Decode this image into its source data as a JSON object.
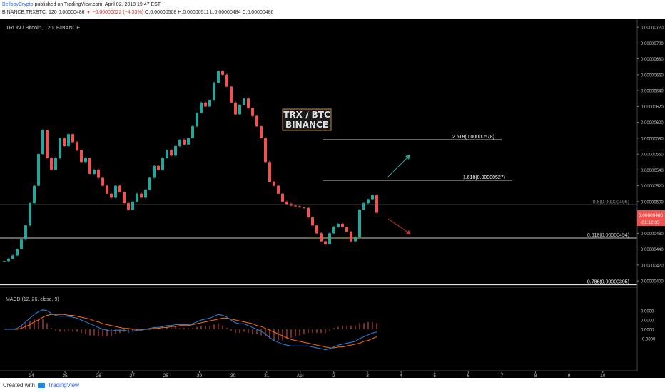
{
  "header": {
    "author": "BellboyCrypto",
    "published_text": "published on TradingView.com, April 02, 2018 19:47 EST",
    "symbol_line": "BINANCE:TRXBTC, 120 0.00000486",
    "change_text": "▼ −0.00000022 (−4.33%)",
    "ohlc_text": "O:0.00000508 H:0.00000511 L:0.00000484 C:0.00000486"
  },
  "footer": {
    "created_with": "Created with",
    "brand": "TradingView"
  },
  "colors": {
    "bg": "#000000",
    "up": "#26a69a",
    "down": "#ef5350",
    "fib": "#ffffff",
    "macd": "#1e88e5",
    "signal": "#ff6d00",
    "hist": "#ef5350",
    "arrow_up": "#26a69a",
    "arrow_down": "#d32f2f",
    "label_box": "#c58b47",
    "price_tag": "#ef5350"
  },
  "chart_data": {
    "type": "candlestick",
    "title": "TRON / Bitcoin, 120, BINANCE",
    "watermark": [
      "TRX / BTC",
      "BINANCE"
    ],
    "y_ticks": [
      "0.00000720",
      "0.00000700",
      "0.00000680",
      "0.00000660",
      "0.00000640",
      "0.00000620",
      "0.00000600",
      "0.00000580",
      "0.00000560",
      "0.00000540",
      "0.00000520",
      "0.00000500",
      "0.00000480",
      "0.00000460",
      "0.00000440",
      "0.00000420",
      "0.00000400"
    ],
    "ylim": [
      3.92e-06,
      7.3e-06
    ],
    "x_ticks": [
      "24",
      "25",
      "26",
      "27",
      "28",
      "29",
      "30",
      "31",
      "Apr",
      "2",
      "3",
      "4",
      "5",
      "6",
      "7",
      "8",
      "9",
      "10"
    ],
    "last_price": "0.00000486",
    "countdown": "01:12:35",
    "fib_levels": [
      {
        "label": "2.618(0.00000578)",
        "value": 5.78e-06
      },
      {
        "label": "1.618(0.00000527)",
        "value": 5.27e-06
      },
      {
        "label": "0.5(0.00000496)",
        "value": 4.96e-06
      },
      {
        "label": "0.618(0.00000454)",
        "value": 4.54e-06
      },
      {
        "label": "0.786(0.00000395)",
        "value": 3.95e-06
      }
    ],
    "candles_close": [
      4.25e-06,
      4.28e-06,
      4.32e-06,
      4.4e-06,
      4.52e-06,
      4.7e-06,
      4.98e-06,
      5.2e-06,
      5.6e-06,
      5.9e-06,
      5.55e-06,
      5.4e-06,
      5.55e-06,
      5.8e-06,
      5.7e-06,
      5.85e-06,
      5.75e-06,
      5.65e-06,
      5.5e-06,
      5.55e-06,
      5.35e-06,
      5.4e-06,
      5.3e-06,
      5.2e-06,
      5.1e-06,
      5.05e-06,
      5.2e-06,
      5.12e-06,
      4.98e-06,
      4.9e-06,
      5e-06,
      5.1e-06,
      5.05e-06,
      5.15e-06,
      5.3e-06,
      5.45e-06,
      5.4e-06,
      5.55e-06,
      5.65e-06,
      5.58e-06,
      5.7e-06,
      5.78e-06,
      5.72e-06,
      5.8e-06,
      5.95e-06,
      6.12e-06,
      6.25e-06,
      6.2e-06,
      6.28e-06,
      6.5e-06,
      6.65e-06,
      6.6e-06,
      6.45e-06,
      6.25e-06,
      6.1e-06,
      6.22e-06,
      6.3e-06,
      6.18e-06,
      6.08e-06,
      5.95e-06,
      5.8e-06,
      5.5e-06,
      5.25e-06,
      5.2e-06,
      5.1e-06,
      5e-06,
      4.97e-06,
      4.95e-06,
      4.94e-06,
      4.93e-06,
      4.92e-06,
      4.8e-06,
      4.7e-06,
      4.6e-06,
      4.5e-06,
      4.46e-06,
      4.6e-06,
      4.68e-06,
      4.72e-06,
      4.68e-06,
      4.62e-06,
      4.5e-06,
      4.55e-06,
      4.9e-06,
      4.98e-06,
      5.03e-06,
      5.08e-06,
      4.86e-06
    ],
    "macd_line": [
      0.0,
      0.0,
      0.0,
      0.1,
      0.4,
      0.8,
      1.2,
      1.6,
      1.9,
      2.1,
      2.0,
      1.7,
      1.5,
      1.4,
      1.4,
      1.4,
      1.3,
      1.2,
      1.0,
      0.8,
      0.6,
      0.4,
      0.2,
      0.0,
      -0.1,
      -0.2,
      -0.1,
      -0.1,
      -0.1,
      -0.2,
      -0.2,
      -0.1,
      -0.1,
      0.0,
      0.1,
      0.2,
      0.2,
      0.3,
      0.4,
      0.4,
      0.5,
      0.5,
      0.5,
      0.5,
      0.6,
      0.8,
      1.0,
      1.1,
      1.2,
      1.4,
      1.6,
      1.5,
      1.3,
      1.0,
      0.7,
      0.6,
      0.6,
      0.4,
      0.2,
      0.0,
      -0.2,
      -0.5,
      -0.9,
      -1.2,
      -1.4,
      -1.6,
      -1.7,
      -1.8,
      -1.8,
      -1.8,
      -1.8,
      -1.8,
      -1.9,
      -2.0,
      -2.1,
      -2.2,
      -2.1,
      -1.9,
      -1.7,
      -1.6,
      -1.5,
      -1.4,
      -1.3,
      -1.0,
      -0.8,
      -0.6,
      -0.4,
      -0.3
    ],
    "signal_line": [
      0.0,
      0.0,
      0.0,
      0.0,
      0.1,
      0.3,
      0.5,
      0.8,
      1.0,
      1.3,
      1.5,
      1.6,
      1.6,
      1.6,
      1.6,
      1.5,
      1.5,
      1.4,
      1.3,
      1.2,
      1.1,
      0.9,
      0.8,
      0.6,
      0.5,
      0.4,
      0.3,
      0.2,
      0.1,
      0.1,
      0.0,
      0.0,
      0.0,
      0.0,
      0.0,
      0.1,
      0.1,
      0.2,
      0.2,
      0.3,
      0.3,
      0.4,
      0.4,
      0.4,
      0.5,
      0.6,
      0.7,
      0.8,
      0.9,
      1.0,
      1.1,
      1.2,
      1.2,
      1.1,
      1.0,
      0.9,
      0.8,
      0.7,
      0.6,
      0.4,
      0.3,
      0.1,
      -0.1,
      -0.3,
      -0.5,
      -0.7,
      -0.9,
      -1.1,
      -1.2,
      -1.3,
      -1.4,
      -1.5,
      -1.6,
      -1.7,
      -1.8,
      -1.9,
      -2.0,
      -2.0,
      -1.9,
      -1.9,
      -1.8,
      -1.7,
      -1.6,
      -1.5,
      -1.3,
      -1.2,
      -1.0,
      -0.8
    ],
    "macd_label": "MACD (12, 26, close, 9)",
    "macd_ticks": [
      "0.0000",
      "0.0000",
      "0.0000",
      "-0.0000"
    ]
  }
}
